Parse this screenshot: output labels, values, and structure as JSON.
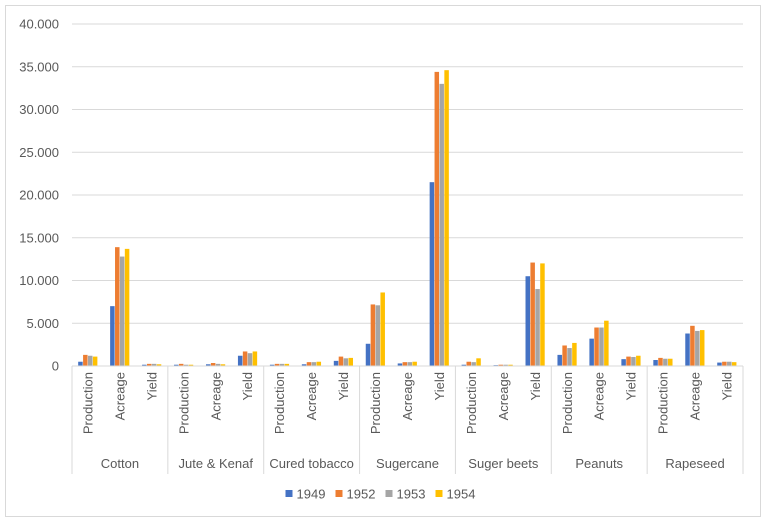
{
  "chart_data": {
    "type": "bar",
    "groups": [
      "Cotton",
      "Jute & Kenaf",
      "Cured tobacco",
      "Sugercane",
      "Suger beets",
      "Peanuts",
      "Rapeseed"
    ],
    "subcategories": [
      "Production",
      "Acreage",
      "Yield"
    ],
    "series": [
      {
        "name": "1949",
        "color": "#4472C4",
        "values": [
          500,
          7000,
          150,
          150,
          200,
          1200,
          150,
          200,
          600,
          2600,
          300,
          21500,
          150,
          100,
          10500,
          1300,
          3200,
          800,
          700,
          3800,
          400
        ]
      },
      {
        "name": "1952",
        "color": "#ED7D31",
        "values": [
          1300,
          13900,
          250,
          250,
          350,
          1700,
          250,
          450,
          1100,
          7200,
          450,
          34400,
          500,
          150,
          12100,
          2400,
          4500,
          1100,
          950,
          4700,
          500
        ]
      },
      {
        "name": "1953",
        "color": "#A5A5A5",
        "values": [
          1200,
          12800,
          250,
          150,
          250,
          1500,
          250,
          450,
          900,
          7100,
          450,
          33000,
          450,
          150,
          9000,
          2100,
          4500,
          1050,
          850,
          4100,
          500
        ]
      },
      {
        "name": "1954",
        "color": "#FFC000",
        "values": [
          1100,
          13700,
          200,
          150,
          200,
          1700,
          250,
          500,
          950,
          8600,
          500,
          34600,
          900,
          150,
          12000,
          2700,
          5300,
          1200,
          850,
          4200,
          450
        ]
      }
    ],
    "ylim": [
      0,
      40000
    ],
    "yticks": [
      "0",
      "5.000",
      "10.000",
      "15.000",
      "20.000",
      "25.000",
      "30.000",
      "35.000",
      "40.000"
    ],
    "legend_position": "bottom",
    "grid": true
  }
}
